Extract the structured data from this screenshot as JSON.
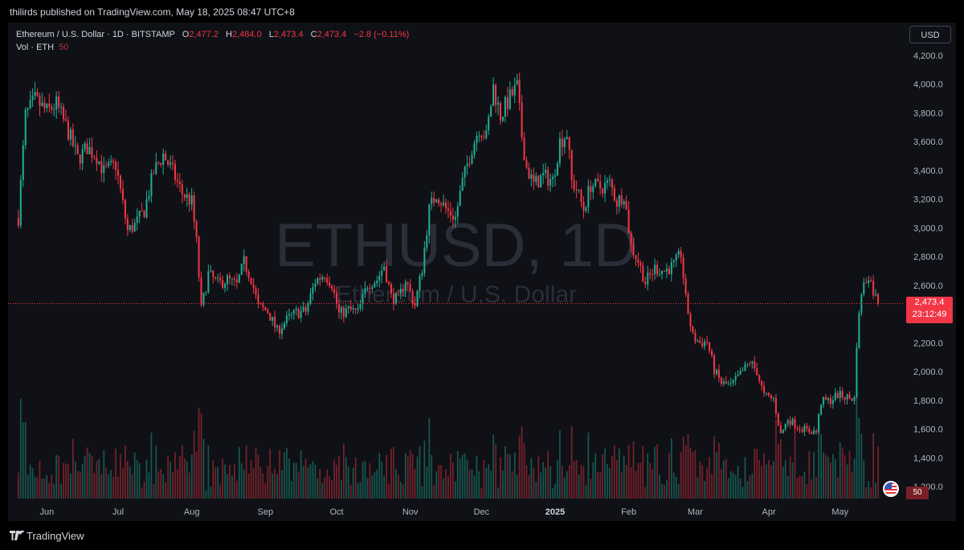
{
  "header": {
    "publish_text": "thilirds published on TradingView.com, May 18, 2025 08:47 UTC+8"
  },
  "legend": {
    "symbol": "Ethereum / U.S. Dollar · 1D · BITSTAMP",
    "o_label": "O",
    "o_value": "2,477.2",
    "h_label": "H",
    "h_value": "2,484.0",
    "l_label": "L",
    "l_value": "2,473.4",
    "c_label": "C",
    "c_value": "2,473.4",
    "change": "−2.8 (−0.11%)",
    "vol_label": "Vol · ETH",
    "vol_value": "50"
  },
  "currency_button": "USD",
  "price_tag": {
    "price": "2,473.4",
    "countdown": "23:12:49"
  },
  "volume_tag": "50",
  "footer": {
    "brand": "TradingView"
  },
  "colors": {
    "up": "#22ab94",
    "down": "#f23645",
    "background": "#0f1116",
    "text": "#d1d4dc"
  },
  "chart_data": {
    "type": "candlestick",
    "symbol": "ETHUSD, 1D",
    "watermark_title": "ETHUSD, 1D",
    "watermark_subtitle": "Ethereum / U.S. Dollar",
    "y_axis_labels": [
      "4,200.0",
      "4,000.0",
      "3,800.0",
      "3,600.0",
      "3,400.0",
      "3,200.0",
      "3,000.0",
      "2,800.0",
      "2,600.0",
      "2,400.0",
      "2,200.0",
      "2,000.0",
      "1,800.0",
      "1,600.0",
      "1,400.0",
      "1,200.0"
    ],
    "x_axis_labels": [
      "Jun",
      "Jul",
      "Aug",
      "Sep",
      "Oct",
      "Nov",
      "Dec",
      "2025",
      "Feb",
      "Mar",
      "Apr",
      "May"
    ],
    "ylim": [
      1150,
      4280
    ],
    "last_price": 2473.4,
    "close_series_approx": [
      [
        "2024-05-20",
        3070
      ],
      [
        "2024-05-23",
        3780
      ],
      [
        "2024-05-27",
        3890
      ],
      [
        "2024-06-01",
        3810
      ],
      [
        "2024-06-05",
        3860
      ],
      [
        "2024-06-10",
        3670
      ],
      [
        "2024-06-14",
        3480
      ],
      [
        "2024-06-18",
        3560
      ],
      [
        "2024-06-22",
        3500
      ],
      [
        "2024-06-25",
        3390
      ],
      [
        "2024-06-30",
        3440
      ],
      [
        "2024-07-05",
        2980
      ],
      [
        "2024-07-08",
        3020
      ],
      [
        "2024-07-12",
        3120
      ],
      [
        "2024-07-16",
        3390
      ],
      [
        "2024-07-20",
        3510
      ],
      [
        "2024-07-24",
        3390
      ],
      [
        "2024-07-28",
        3240
      ],
      [
        "2024-08-01",
        3180
      ],
      [
        "2024-08-03",
        2900
      ],
      [
        "2024-08-05",
        2430
      ],
      [
        "2024-08-08",
        2680
      ],
      [
        "2024-08-12",
        2610
      ],
      [
        "2024-08-16",
        2640
      ],
      [
        "2024-08-20",
        2600
      ],
      [
        "2024-08-23",
        2760
      ],
      [
        "2024-08-26",
        2650
      ],
      [
        "2024-08-29",
        2450
      ],
      [
        "2024-09-02",
        2420
      ],
      [
        "2024-09-06",
        2280
      ],
      [
        "2024-09-10",
        2360
      ],
      [
        "2024-09-14",
        2410
      ],
      [
        "2024-09-18",
        2420
      ],
      [
        "2024-09-22",
        2630
      ],
      [
        "2024-09-26",
        2680
      ],
      [
        "2024-09-29",
        2610
      ],
      [
        "2024-10-02",
        2400
      ],
      [
        "2024-10-06",
        2430
      ],
      [
        "2024-10-10",
        2410
      ],
      [
        "2024-10-14",
        2610
      ],
      [
        "2024-10-18",
        2640
      ],
      [
        "2024-10-21",
        2740
      ],
      [
        "2024-10-24",
        2520
      ],
      [
        "2024-10-27",
        2500
      ],
      [
        "2024-10-30",
        2640
      ],
      [
        "2024-11-03",
        2460
      ],
      [
        "2024-11-06",
        2720
      ],
      [
        "2024-11-09",
        3130
      ],
      [
        "2024-11-12",
        3240
      ],
      [
        "2024-11-16",
        3130
      ],
      [
        "2024-11-20",
        3070
      ],
      [
        "2024-11-23",
        3320
      ],
      [
        "2024-11-27",
        3560
      ],
      [
        "2024-11-30",
        3700
      ],
      [
        "2024-12-03",
        3630
      ],
      [
        "2024-12-06",
        3980
      ],
      [
        "2024-12-09",
        3780
      ],
      [
        "2024-12-12",
        3880
      ],
      [
        "2024-12-16",
        3980
      ],
      [
        "2024-12-18",
        3640
      ],
      [
        "2024-12-20",
        3420
      ],
      [
        "2024-12-23",
        3300
      ],
      [
        "2024-12-27",
        3360
      ],
      [
        "2024-12-31",
        3330
      ],
      [
        "2025-01-03",
        3600
      ],
      [
        "2025-01-06",
        3660
      ],
      [
        "2025-01-08",
        3320
      ],
      [
        "2025-01-10",
        3270
      ],
      [
        "2025-01-13",
        3130
      ],
      [
        "2025-01-16",
        3300
      ],
      [
        "2025-01-20",
        3280
      ],
      [
        "2025-01-24",
        3310
      ],
      [
        "2025-01-27",
        3180
      ],
      [
        "2025-01-30",
        3240
      ],
      [
        "2025-02-02",
        2870
      ],
      [
        "2025-02-05",
        2770
      ],
      [
        "2025-02-08",
        2620
      ],
      [
        "2025-02-12",
        2720
      ],
      [
        "2025-02-16",
        2700
      ],
      [
        "2025-02-20",
        2740
      ],
      [
        "2025-02-23",
        2820
      ],
      [
        "2025-02-25",
        2500
      ],
      [
        "2025-02-28",
        2240
      ],
      [
        "2025-03-03",
        2200
      ],
      [
        "2025-03-06",
        2210
      ],
      [
        "2025-03-09",
        2010
      ],
      [
        "2025-03-12",
        1920
      ],
      [
        "2025-03-16",
        1900
      ],
      [
        "2025-03-20",
        1980
      ],
      [
        "2025-03-24",
        2070
      ],
      [
        "2025-03-27",
        2000
      ],
      [
        "2025-03-30",
        1830
      ],
      [
        "2025-04-03",
        1810
      ],
      [
        "2025-04-06",
        1560
      ],
      [
        "2025-04-09",
        1670
      ],
      [
        "2025-04-13",
        1620
      ],
      [
        "2025-04-17",
        1590
      ],
      [
        "2025-04-21",
        1580
      ],
      [
        "2025-04-23",
        1790
      ],
      [
        "2025-04-27",
        1800
      ],
      [
        "2025-04-30",
        1840
      ],
      [
        "2025-05-04",
        1820
      ],
      [
        "2025-05-07",
        1810
      ],
      [
        "2025-05-08",
        2200
      ],
      [
        "2025-05-10",
        2560
      ],
      [
        "2025-05-13",
        2680
      ],
      [
        "2025-05-15",
        2560
      ],
      [
        "2025-05-17",
        2473
      ]
    ]
  }
}
